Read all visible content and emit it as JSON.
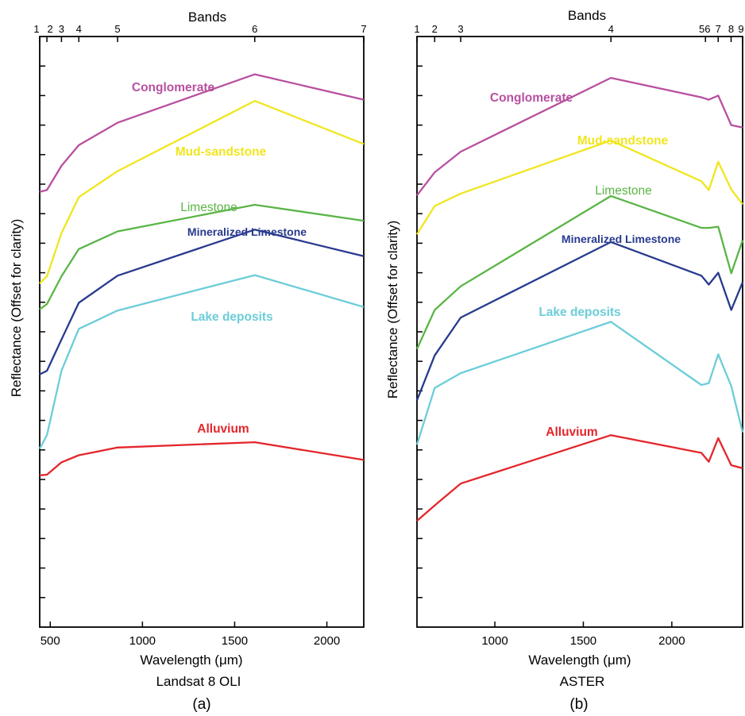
{
  "chart_data": [
    {
      "type": "line",
      "panel_label": "(a)",
      "sensor": "Landsat 8 OLI",
      "title": "Bands",
      "xlabel": "Wavelength (μm)",
      "ylabel": "Reflectance (Offset for clarity)",
      "xlim": [
        443,
        2200
      ],
      "ylim": [
        0,
        1
      ],
      "x_ticks": [
        500,
        1000,
        1500,
        2000
      ],
      "y_minor_ticks": 20,
      "grid": false,
      "bands": [
        {
          "label": "1",
          "x": 443
        },
        {
          "label": "2",
          "x": 482
        },
        {
          "label": "3",
          "x": 561
        },
        {
          "label": "4",
          "x": 655
        },
        {
          "label": "5",
          "x": 865
        },
        {
          "label": "6",
          "x": 1609
        },
        {
          "label": "7",
          "x": 2200
        }
      ],
      "x": [
        443,
        482,
        561,
        655,
        865,
        1609,
        2200
      ],
      "series": [
        {
          "name": "Conglomerate",
          "color": "#b8509f",
          "bold": true,
          "values": [
            0.737,
            0.74,
            0.781,
            0.816,
            0.854,
            0.936,
            0.893
          ]
        },
        {
          "name": "Mud-sandstone",
          "color": "#f0e61e",
          "bold": true,
          "values": [
            0.582,
            0.594,
            0.667,
            0.728,
            0.772,
            0.891,
            0.818
          ]
        },
        {
          "name": "Limestone",
          "color": "#5ab546",
          "bold": false,
          "values": [
            0.538,
            0.547,
            0.594,
            0.64,
            0.67,
            0.715,
            0.688
          ]
        },
        {
          "name": "Mineralized Limestone",
          "color": "#283a8e",
          "bold": true,
          "values": [
            0.428,
            0.434,
            0.487,
            0.549,
            0.595,
            0.673,
            0.628
          ]
        },
        {
          "name": "Lake deposits",
          "color": "#6ccdd8",
          "bold": true,
          "values": [
            0.302,
            0.325,
            0.434,
            0.505,
            0.536,
            0.596,
            0.542
          ]
        },
        {
          "name": "Alluvium",
          "color": "#e3262b",
          "bold": true,
          "values": [
            0.257,
            0.258,
            0.279,
            0.291,
            0.304,
            0.313,
            0.283
          ]
        }
      ]
    },
    {
      "type": "line",
      "panel_label": "(b)",
      "sensor": "ASTER",
      "title": "Bands",
      "xlabel": "Wavelength (μm)",
      "ylabel": "Reflectance (Offset for clarity)",
      "xlim": [
        560,
        2400
      ],
      "ylim": [
        0,
        1
      ],
      "x_ticks": [
        1000,
        1500,
        2000
      ],
      "y_minor_ticks": 20,
      "grid": false,
      "bands": [
        {
          "label": "1",
          "x": 560
        },
        {
          "label": "2",
          "x": 660
        },
        {
          "label": "3",
          "x": 807
        },
        {
          "label": "4",
          "x": 1656
        },
        {
          "label": "56",
          "x": 2190
        },
        {
          "label": "7",
          "x": 2262
        },
        {
          "label": "8",
          "x": 2335
        },
        {
          "label": "9",
          "x": 2400
        }
      ],
      "x": [
        560,
        660,
        807,
        1656,
        2167,
        2209,
        2262,
        2336,
        2400
      ],
      "series": [
        {
          "name": "Conglomerate",
          "color": "#b8509f",
          "bold": true,
          "values": [
            0.731,
            0.77,
            0.805,
            0.93,
            0.897,
            0.893,
            0.9,
            0.85,
            0.846
          ]
        },
        {
          "name": "Mud-sandstone",
          "color": "#f0e61e",
          "bold": true,
          "values": [
            0.665,
            0.713,
            0.734,
            0.824,
            0.755,
            0.74,
            0.788,
            0.741,
            0.716
          ]
        },
        {
          "name": "Limestone",
          "color": "#5ab546",
          "bold": false,
          "values": [
            0.471,
            0.537,
            0.577,
            0.73,
            0.676,
            0.676,
            0.678,
            0.599,
            0.655
          ]
        },
        {
          "name": "Mineralized Limestone",
          "color": "#283a8e",
          "bold": true,
          "values": [
            0.384,
            0.46,
            0.524,
            0.652,
            0.595,
            0.58,
            0.6,
            0.537,
            0.584
          ]
        },
        {
          "name": "Lake deposits",
          "color": "#6ccdd8",
          "bold": true,
          "values": [
            0.309,
            0.405,
            0.43,
            0.517,
            0.41,
            0.413,
            0.462,
            0.408,
            0.33
          ]
        },
        {
          "name": "Alluvium",
          "color": "#e3262b",
          "bold": true,
          "values": [
            0.18,
            0.206,
            0.243,
            0.325,
            0.295,
            0.28,
            0.32,
            0.274,
            0.269
          ]
        }
      ]
    }
  ]
}
